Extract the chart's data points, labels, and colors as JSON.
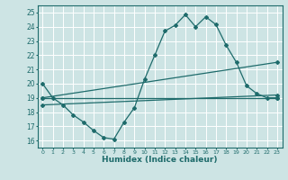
{
  "xlabel": "Humidex (Indice chaleur)",
  "bg_color": "#cde4e4",
  "line_color": "#1e6b6b",
  "grid_color": "#ffffff",
  "xlim": [
    -0.5,
    23.5
  ],
  "ylim": [
    15.5,
    25.5
  ],
  "xticks": [
    0,
    1,
    2,
    3,
    4,
    5,
    6,
    7,
    8,
    9,
    10,
    11,
    12,
    13,
    14,
    15,
    16,
    17,
    18,
    19,
    20,
    21,
    22,
    23
  ],
  "yticks": [
    16,
    17,
    18,
    19,
    20,
    21,
    22,
    23,
    24,
    25
  ],
  "line1_x": [
    0,
    1,
    2,
    3,
    4,
    5,
    6,
    7,
    8,
    9,
    10,
    11,
    12,
    13,
    14,
    15,
    16,
    17,
    18,
    19,
    20,
    21,
    22,
    23
  ],
  "line1_y": [
    20.0,
    19.0,
    18.5,
    17.8,
    17.3,
    16.7,
    16.2,
    16.1,
    17.3,
    18.3,
    20.3,
    22.0,
    23.7,
    24.1,
    24.85,
    24.0,
    24.7,
    24.15,
    22.7,
    21.5,
    19.85,
    19.3,
    19.0,
    19.0
  ],
  "line2_x": [
    0,
    23
  ],
  "line2_y": [
    19.0,
    21.5
  ],
  "line3_x": [
    0,
    23
  ],
  "line3_y": [
    19.0,
    19.0
  ],
  "line4_x": [
    0,
    23
  ],
  "line4_y": [
    18.5,
    19.2
  ]
}
